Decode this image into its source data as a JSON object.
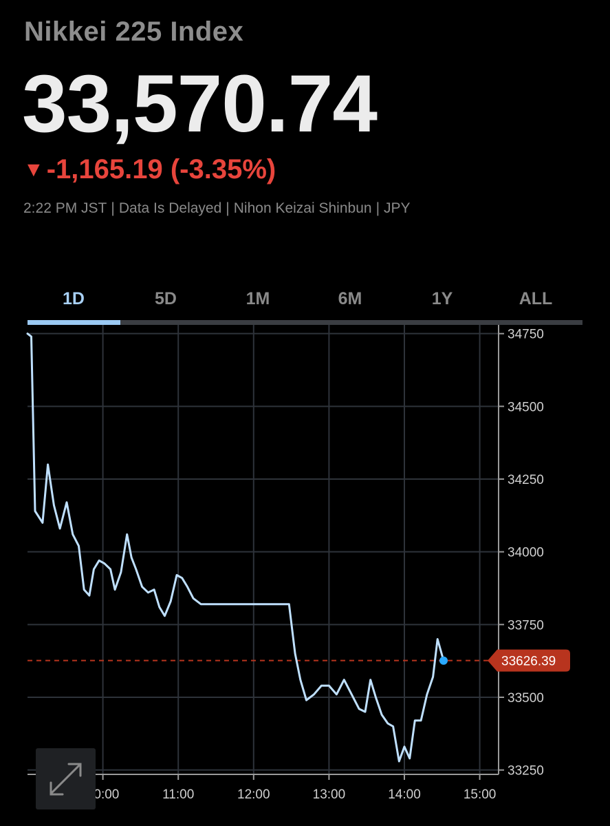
{
  "header": {
    "index_name": "Nikkei 225 Index",
    "price": "33,570.74",
    "change_arrow": "▼",
    "change": "-1,165.19 (-3.35%)",
    "meta": [
      "2:22 PM JST",
      "Data Is Delayed",
      "Nihon Keizai Shinbun",
      "JPY"
    ]
  },
  "tabs": [
    {
      "label": "1D",
      "active": true
    },
    {
      "label": "5D",
      "active": false
    },
    {
      "label": "1M",
      "active": false
    },
    {
      "label": "6M",
      "active": false
    },
    {
      "label": "1Y",
      "active": false
    },
    {
      "label": "ALL",
      "active": false
    }
  ],
  "colors": {
    "line": "#bfe0ff",
    "down": "#e8453c",
    "grid": "#2e333a",
    "marker": "#2aa9ff",
    "reference_tag": "#b8341e"
  },
  "icons": {
    "expand": "expand-arrows-icon"
  },
  "chart_data": {
    "type": "line",
    "x_unit": "time (JST, decimal hours)",
    "xlim": [
      9.0,
      15.25
    ],
    "ylim": [
      33235,
      34780
    ],
    "x_ticks": [
      10,
      11,
      12,
      13,
      14,
      15
    ],
    "x_tick_labels": [
      "10:00",
      "11:00",
      "12:00",
      "13:00",
      "14:00",
      "15:00"
    ],
    "y_ticks": [
      33250,
      33500,
      33750,
      34000,
      34250,
      34500,
      34750
    ],
    "y_tick_labels": [
      "33250",
      "33500",
      "33750",
      "34000",
      "34250",
      "34500",
      "34750"
    ],
    "grid": true,
    "y_axis_position": "right",
    "reference_line": {
      "value": 33626.39,
      "label": "33626.39",
      "style": "dashed"
    },
    "series": [
      {
        "x": [
          9.0,
          9.05,
          9.1,
          9.2,
          9.27,
          9.35,
          9.43,
          9.52,
          9.6,
          9.68,
          9.75,
          9.82,
          9.88,
          9.95,
          10.02,
          10.1,
          10.16,
          10.24,
          10.32,
          10.38,
          10.44,
          10.52,
          10.6,
          10.68,
          10.75,
          10.82,
          10.9,
          10.98,
          11.05,
          11.12,
          11.2,
          11.3,
          11.4,
          11.5,
          11.6,
          11.75,
          11.9,
          12.0,
          12.1,
          12.2,
          12.3,
          12.4,
          12.47,
          12.55,
          12.62,
          12.7,
          12.8,
          12.9,
          13.0,
          13.1,
          13.2,
          13.3,
          13.4,
          13.48,
          13.55,
          13.62,
          13.7,
          13.78,
          13.85,
          13.93,
          14.0,
          14.07,
          14.14,
          14.22,
          14.3,
          14.38,
          14.44,
          14.52
        ],
        "y": [
          34750,
          34740,
          34140,
          34100,
          34300,
          34160,
          34080,
          34170,
          34060,
          34020,
          33870,
          33850,
          33940,
          33970,
          33960,
          33940,
          33870,
          33930,
          34060,
          33980,
          33940,
          33880,
          33860,
          33870,
          33810,
          33780,
          33830,
          33920,
          33910,
          33880,
          33840,
          33820,
          33820,
          33820,
          33820,
          33820,
          33820,
          33820,
          33820,
          33820,
          33820,
          33820,
          33820,
          33650,
          33560,
          33490,
          33510,
          33540,
          33540,
          33510,
          33560,
          33510,
          33460,
          33450,
          33560,
          33500,
          33440,
          33410,
          33400,
          33280,
          33330,
          33290,
          33420,
          33420,
          33510,
          33570,
          33700,
          33626
        ]
      }
    ],
    "last_point_marker": true
  }
}
